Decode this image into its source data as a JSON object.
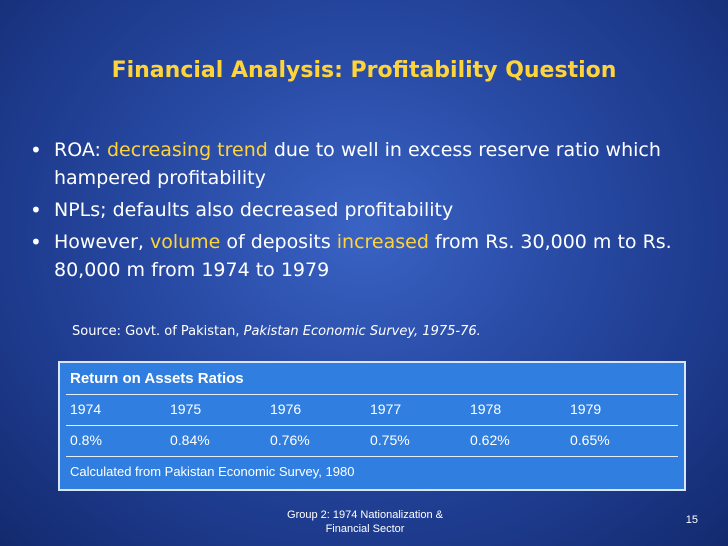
{
  "title": "Financial Analysis: Profitability Question",
  "bullets": [
    {
      "pre": "ROA: ",
      "hl1": "decreasing trend",
      "rest": " due to well in excess reserve ratio which hampered profitability"
    },
    {
      "text": "NPLs; defaults also decreased profitability"
    },
    {
      "pre": "However, ",
      "hl1": "volume",
      "mid": " of deposits ",
      "hl2": "increased",
      "rest": " from Rs. 30,000 m to Rs. 80,000 m from 1974 to 1979"
    }
  ],
  "source": {
    "label": "Source: Govt. of Pakistan, ",
    "work": "Pakistan Economic Survey, 1975-76."
  },
  "table": {
    "header": "Return on Assets Ratios",
    "years": [
      "1974",
      "1975",
      "1976",
      "1977",
      "1978",
      "1979"
    ],
    "ratios": [
      "0.8%",
      "0.84%",
      "0.76%",
      "0.75%",
      "0.62%",
      "0.65%"
    ],
    "footnote": "Calculated from Pakistan Economic Survey, 1980"
  },
  "footer": {
    "line1": "Group 2: 1974 Nationalization &",
    "line2": "Financial Sector",
    "page": "15"
  },
  "colors": {
    "background": "#2a4da8",
    "title": "#ffd43a",
    "highlight": "#ffd43a",
    "table": "#2f7ee0"
  }
}
